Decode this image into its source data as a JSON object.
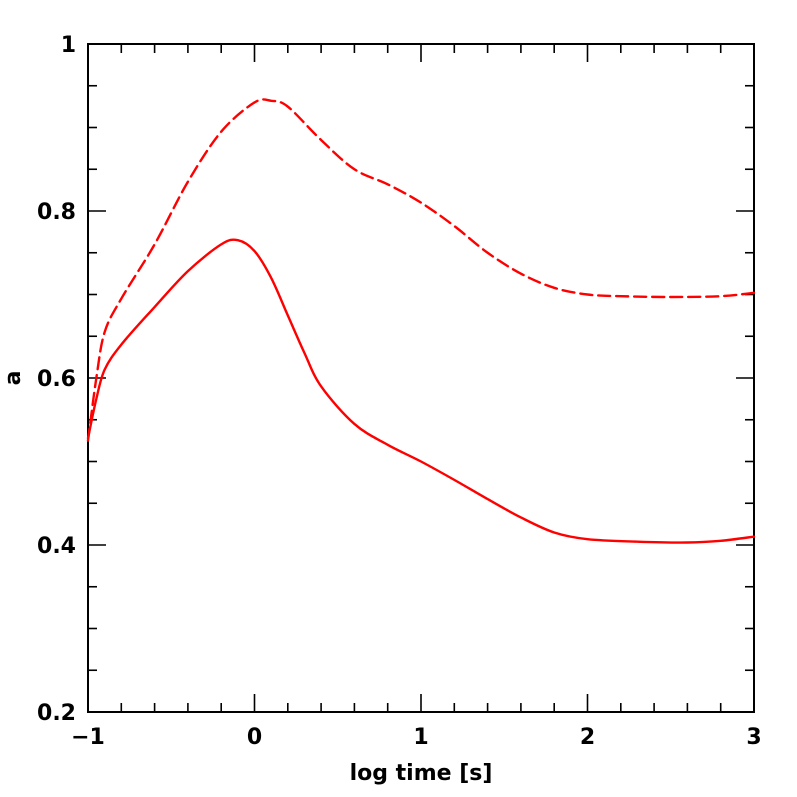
{
  "chart_data": {
    "type": "line",
    "title": "",
    "xlabel": "log time [s]",
    "ylabel": "a",
    "xlim": [
      -1,
      3
    ],
    "ylim": [
      0.2,
      1
    ],
    "x_major_ticks": [
      -1,
      0,
      1,
      2,
      3
    ],
    "x_tick_labels": [
      "−1",
      "0",
      "1",
      "2",
      "3"
    ],
    "x_minor_step": 0.2,
    "y_major_ticks": [
      0.2,
      0.4,
      0.6,
      0.8,
      1
    ],
    "y_tick_labels": [
      "0.2",
      "0.4",
      "0.6",
      "0.8",
      "1"
    ],
    "y_minor_step": 0.05,
    "grid": false,
    "legend": "none",
    "series": [
      {
        "style": "dashed",
        "color": "#ff0000",
        "points": [
          [
            -1.0,
            0.525
          ],
          [
            -0.95,
            0.6
          ],
          [
            -0.9,
            0.655
          ],
          [
            -0.8,
            0.695
          ],
          [
            -0.6,
            0.76
          ],
          [
            -0.4,
            0.835
          ],
          [
            -0.2,
            0.895
          ],
          [
            0.0,
            0.93
          ],
          [
            0.1,
            0.932
          ],
          [
            0.2,
            0.925
          ],
          [
            0.4,
            0.885
          ],
          [
            0.6,
            0.85
          ],
          [
            0.8,
            0.832
          ],
          [
            1.0,
            0.81
          ],
          [
            1.2,
            0.782
          ],
          [
            1.4,
            0.75
          ],
          [
            1.6,
            0.725
          ],
          [
            1.8,
            0.708
          ],
          [
            2.0,
            0.7
          ],
          [
            2.2,
            0.698
          ],
          [
            2.5,
            0.697
          ],
          [
            2.8,
            0.698
          ],
          [
            3.0,
            0.702
          ]
        ]
      },
      {
        "style": "solid",
        "color": "#ff0000",
        "points": [
          [
            -1.0,
            0.528
          ],
          [
            -0.95,
            0.575
          ],
          [
            -0.9,
            0.61
          ],
          [
            -0.8,
            0.64
          ],
          [
            -0.6,
            0.685
          ],
          [
            -0.4,
            0.728
          ],
          [
            -0.2,
            0.76
          ],
          [
            -0.1,
            0.765
          ],
          [
            0.0,
            0.752
          ],
          [
            0.1,
            0.72
          ],
          [
            0.2,
            0.675
          ],
          [
            0.3,
            0.63
          ],
          [
            0.4,
            0.59
          ],
          [
            0.6,
            0.545
          ],
          [
            0.8,
            0.52
          ],
          [
            1.0,
            0.5
          ],
          [
            1.2,
            0.478
          ],
          [
            1.4,
            0.455
          ],
          [
            1.6,
            0.433
          ],
          [
            1.8,
            0.415
          ],
          [
            2.0,
            0.407
          ],
          [
            2.3,
            0.404
          ],
          [
            2.6,
            0.403
          ],
          [
            2.8,
            0.405
          ],
          [
            3.0,
            0.41
          ]
        ]
      }
    ]
  }
}
